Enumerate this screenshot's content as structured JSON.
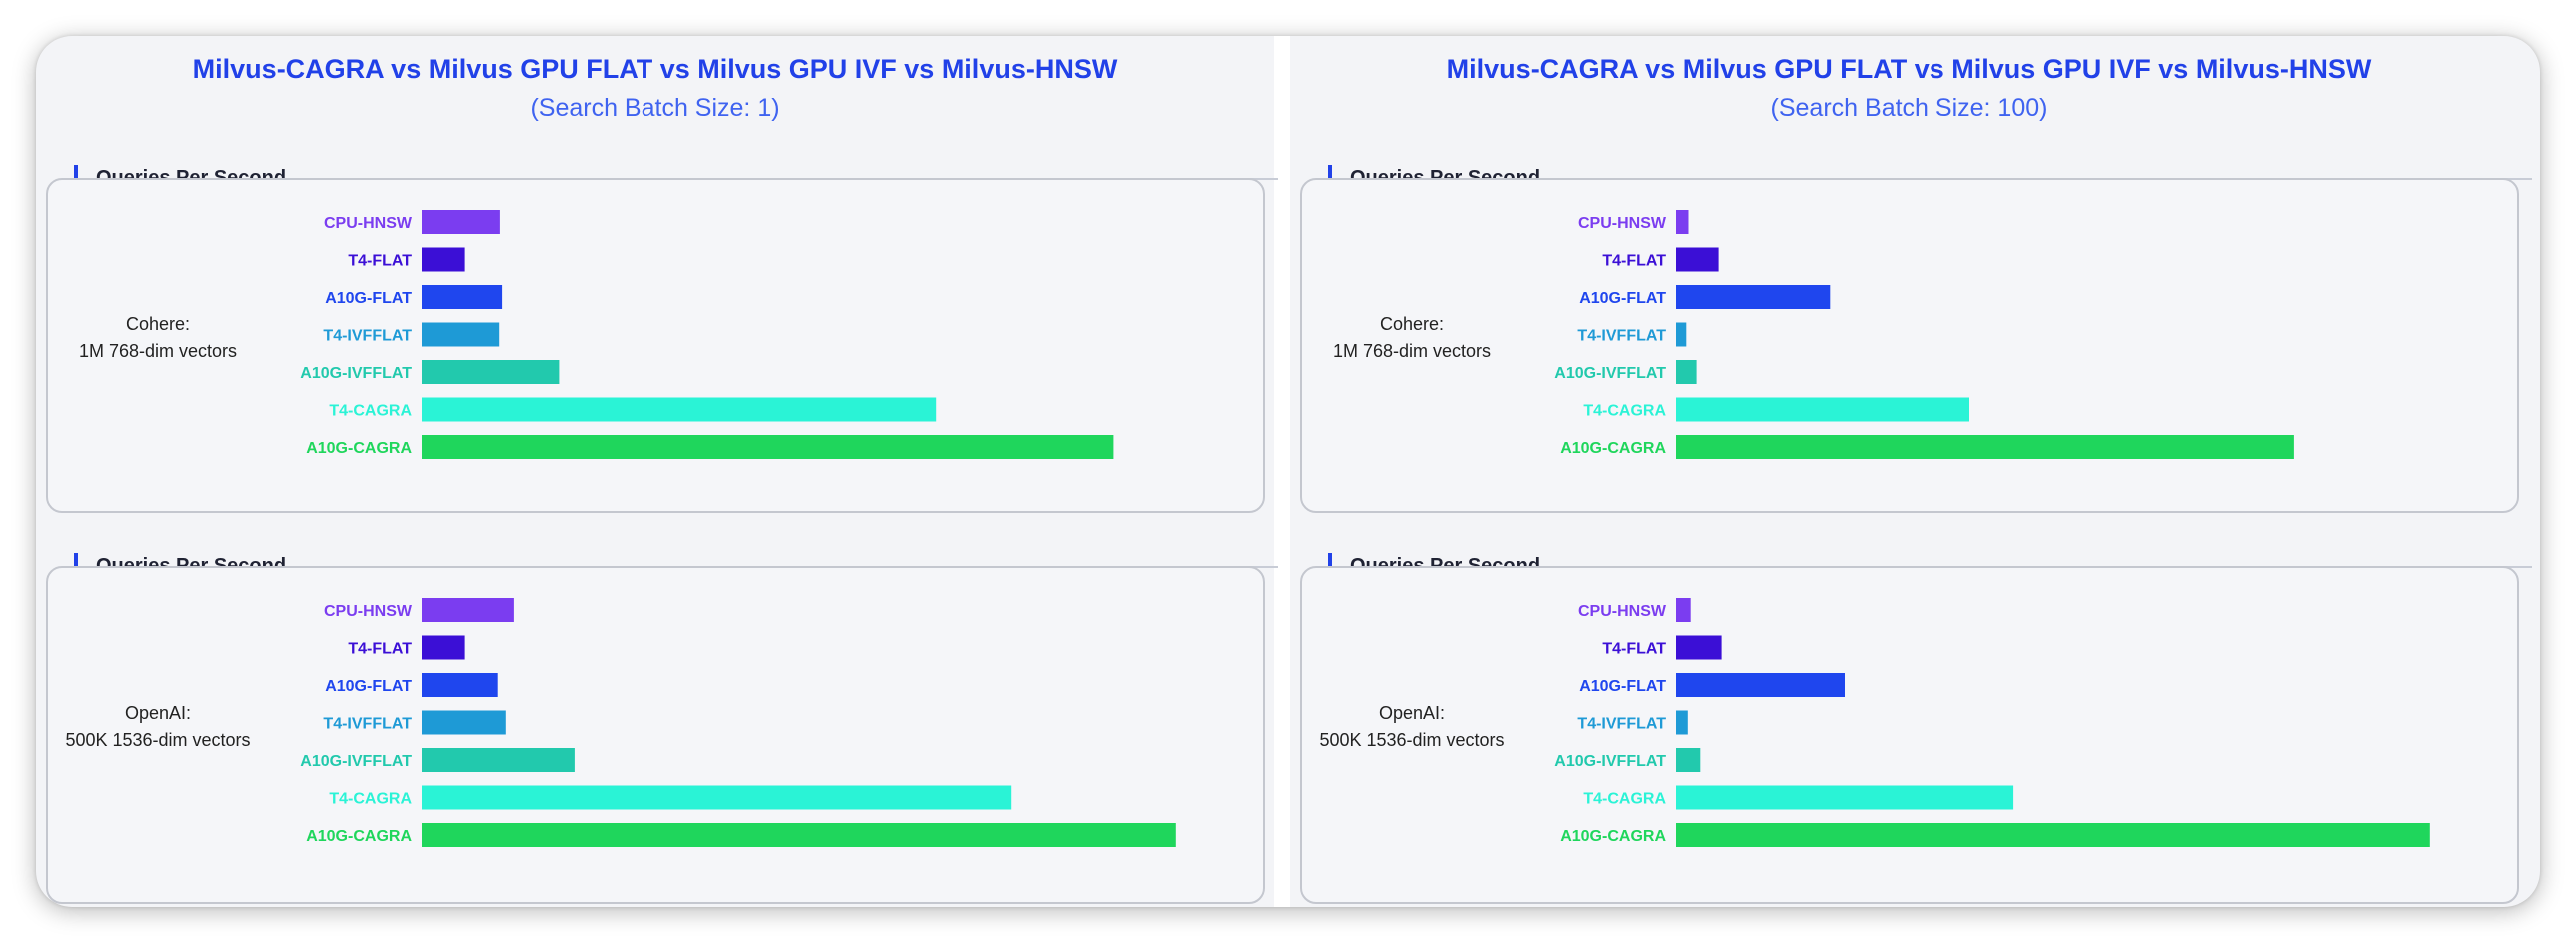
{
  "chart_data": [
    {
      "type": "bar",
      "orientation": "horizontal",
      "title": "Milvus-CAGRA vs Milvus GPU FLAT vs Milvus GPU IVF vs Milvus-HNSW",
      "subtitle": "(Search Batch Size: 1)",
      "groups": [
        {
          "section_label": "Queries Per Second",
          "dataset_lines": [
            "Cohere:",
            "1M 768-dim vectors"
          ],
          "categories": [
            "CPU-HNSW",
            "T4-FLAT",
            "A10G-FLAT",
            "T4-IVFFLAT",
            "A10G-IVFFLAT",
            "T4-CAGRA",
            "A10G-CAGRA"
          ],
          "values": [
            10.6,
            5.8,
            10.9,
            10.5,
            18.7,
            70.1,
            94.2
          ]
        },
        {
          "section_label": "Queries Per Second",
          "dataset_lines": [
            "OpenAI:",
            "500K 1536-dim vectors"
          ],
          "categories": [
            "CPU-HNSW",
            "T4-FLAT",
            "A10G-FLAT",
            "T4-IVFFLAT",
            "A10G-IVFFLAT",
            "T4-CAGRA",
            "A10G-CAGRA"
          ],
          "values": [
            12.5,
            5.8,
            10.3,
            11.4,
            20.8,
            80.3,
            102.7
          ]
        }
      ],
      "xlim": [
        0,
        110
      ]
    },
    {
      "type": "bar",
      "orientation": "horizontal",
      "title": "Milvus-CAGRA vs Milvus GPU FLAT vs Milvus GPU IVF vs Milvus-HNSW",
      "subtitle": "(Search Batch Size: 100)",
      "groups": [
        {
          "section_label": "Queries Per Second",
          "dataset_lines": [
            "Cohere:",
            "1M 768-dim vectors"
          ],
          "categories": [
            "CPU-HNSW",
            "T4-FLAT",
            "A10G-FLAT",
            "T4-IVFFLAT",
            "A10G-IVFFLAT",
            "T4-CAGRA",
            "A10G-CAGRA"
          ],
          "values": [
            1.7,
            5.8,
            21.0,
            1.4,
            2.8,
            40.0,
            84.2
          ]
        },
        {
          "section_label": "Queries Per Second",
          "dataset_lines": [
            "OpenAI:",
            "500K 1536-dim vectors"
          ],
          "categories": [
            "CPU-HNSW",
            "T4-FLAT",
            "A10G-FLAT",
            "T4-IVFFLAT",
            "A10G-IVFFLAT",
            "T4-CAGRA",
            "A10G-CAGRA"
          ],
          "values": [
            2.0,
            6.2,
            23.0,
            1.6,
            3.3,
            46.0,
            102.7
          ]
        }
      ],
      "xlim": [
        0,
        110
      ]
    }
  ],
  "category_colors": {
    "CPU-HNSW": "#7b3df0",
    "T4-FLAT": "#3b0fd6",
    "A10G-FLAT": "#1f46ee",
    "T4-IVFFLAT": "#1e9ad6",
    "A10G-IVFFLAT": "#22c9ad",
    "T4-CAGRA": "#2af3d6",
    "A10G-CAGRA": "#1fd65c"
  }
}
